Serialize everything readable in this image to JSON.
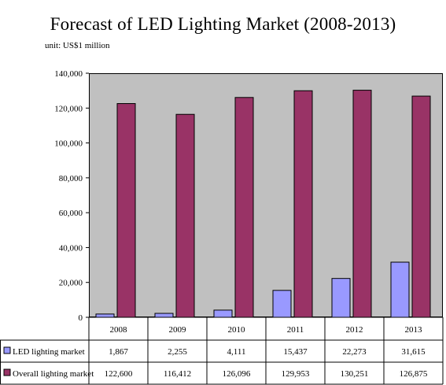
{
  "chart_data": {
    "type": "bar",
    "title": "Forecast of LED Lighting Market (2008-2013)",
    "unit_label": "unit: US$1 million",
    "categories": [
      "2008",
      "2009",
      "2010",
      "2011",
      "2012",
      "2013"
    ],
    "series": [
      {
        "name": "LED lighting market",
        "values": [
          1867,
          2255,
          4111,
          15437,
          22273,
          31615
        ],
        "labels": [
          "1,867",
          "2,255",
          "4,111",
          "15,437",
          "22,273",
          "31,615"
        ],
        "color": "#9999ff"
      },
      {
        "name": "Overall lighting market",
        "values": [
          122600,
          116412,
          126096,
          129953,
          130251,
          126875
        ],
        "labels": [
          "122,600",
          "116,412",
          "126,096",
          "129,953",
          "130,251",
          "126,875"
        ],
        "color": "#993366"
      }
    ],
    "yticks": [
      "0",
      "20,000",
      "40,000",
      "60,000",
      "80,000",
      "100,000",
      "120,000",
      "140,000"
    ],
    "ylim": [
      0,
      140000
    ],
    "plot_background": "#c0c0c0",
    "grid": false,
    "legend": "data-table"
  }
}
